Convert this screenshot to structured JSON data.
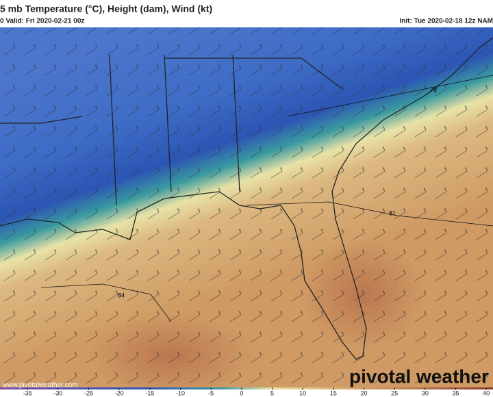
{
  "header": {
    "title": "5 mb Temperature (°C), Height (dam), Wind (kt)",
    "valid": "0 Valid: Fri 2020-02-21 00z",
    "init": "Init: Tue 2020-02-18 12z NAM"
  },
  "contour_labels": [
    "78",
    "81",
    "84"
  ],
  "colorbar": {
    "lim": [
      -39.5,
      41.1
    ],
    "ticks": [
      -35,
      -30,
      -25,
      -20,
      -15,
      -10,
      -5,
      0,
      5,
      10,
      15,
      20,
      25,
      30,
      35,
      40
    ]
  },
  "footer": {
    "url": "www.pivotalweather.com",
    "logo": "pivotal weather"
  }
}
